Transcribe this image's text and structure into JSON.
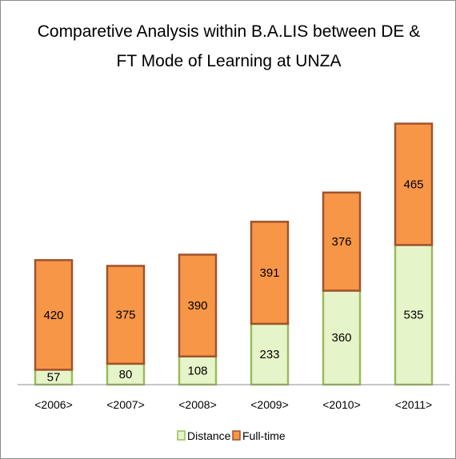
{
  "chart_data": {
    "type": "bar",
    "stacked": true,
    "title_lines": [
      "Comparetive Analysis within B.A.LIS between DE &",
      "FT Mode of Learning  at UNZA"
    ],
    "categories": [
      "<2006>",
      "<2007>",
      "<2008>",
      "<2009>",
      "<2010>",
      "<2011>"
    ],
    "series": [
      {
        "name": "Distance",
        "values": [
          57,
          80,
          108,
          233,
          360,
          535
        ],
        "fill": "#e6f5c9",
        "stroke": "#9bbb59"
      },
      {
        "name": "Full-time",
        "values": [
          420,
          375,
          390,
          391,
          376,
          465
        ],
        "fill": "#f79646",
        "stroke": "#a0522d"
      }
    ],
    "ylim": [
      0,
      1000
    ],
    "grid": false,
    "legend": "bottom"
  }
}
